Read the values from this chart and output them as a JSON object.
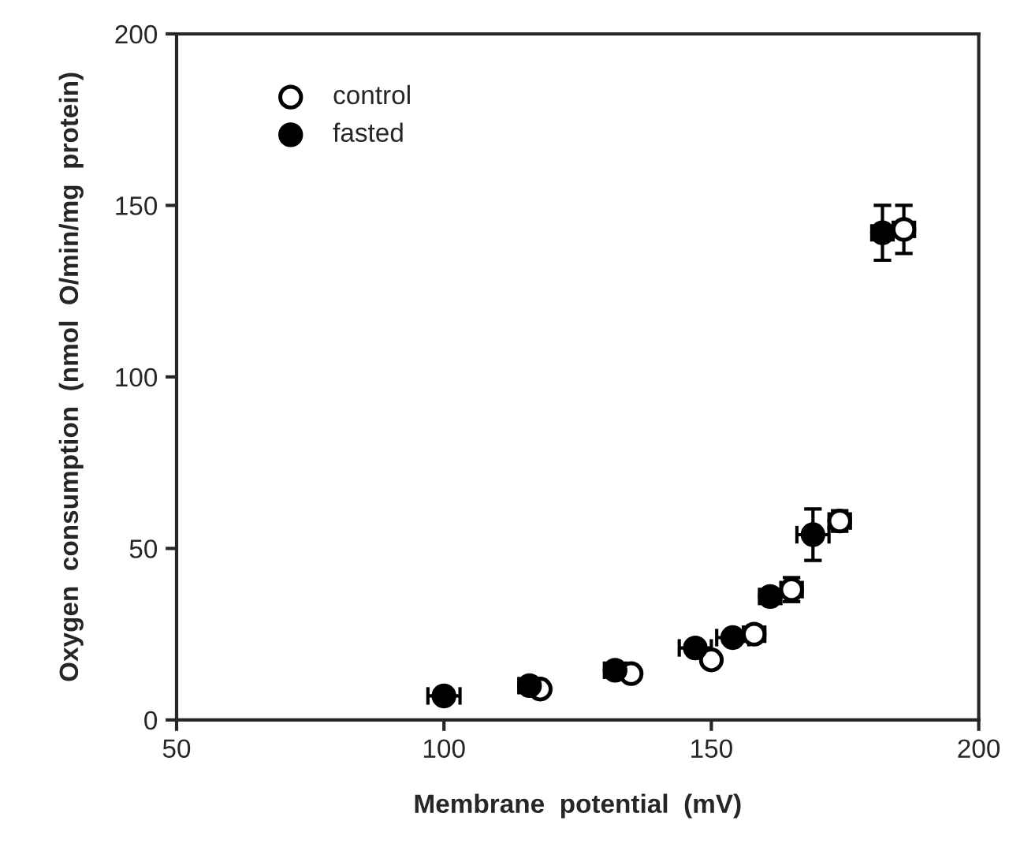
{
  "chart_data": {
    "type": "scatter",
    "xlabel": "Membrane  potential  (mV)",
    "ylabel": "Oxygen  consumption  (nmol  O/min/mg  protein)",
    "xlim": [
      50,
      200
    ],
    "xticks": [
      50,
      100,
      150,
      200
    ],
    "ylim": [
      0,
      200
    ],
    "yticks": [
      0,
      50,
      100,
      150,
      200
    ],
    "grid": false,
    "legend": "top left",
    "marker": "circle",
    "series": [
      {
        "name": "control",
        "color": "#ffffff",
        "x": [
          118,
          135,
          150,
          158,
          165,
          174,
          186
        ],
        "values": [
          9,
          13.5,
          17.5,
          25,
          38,
          58,
          143
        ],
        "errors": [
          null,
          null,
          null,
          1.5,
          3.5,
          3,
          7
        ],
        "xerrors": [
          null,
          null,
          null,
          2,
          2,
          2,
          2
        ]
      },
      {
        "name": "fasted",
        "color": "#000000",
        "x": [
          100,
          116,
          132,
          147,
          154,
          161,
          169,
          182
        ],
        "values": [
          7,
          10,
          14.5,
          21,
          24,
          36,
          54,
          142
        ],
        "errors": [
          null,
          null,
          null,
          null,
          null,
          null,
          7.5,
          8
        ],
        "xerrors": [
          3,
          2,
          2,
          3,
          3,
          2,
          3,
          2
        ]
      }
    ]
  }
}
